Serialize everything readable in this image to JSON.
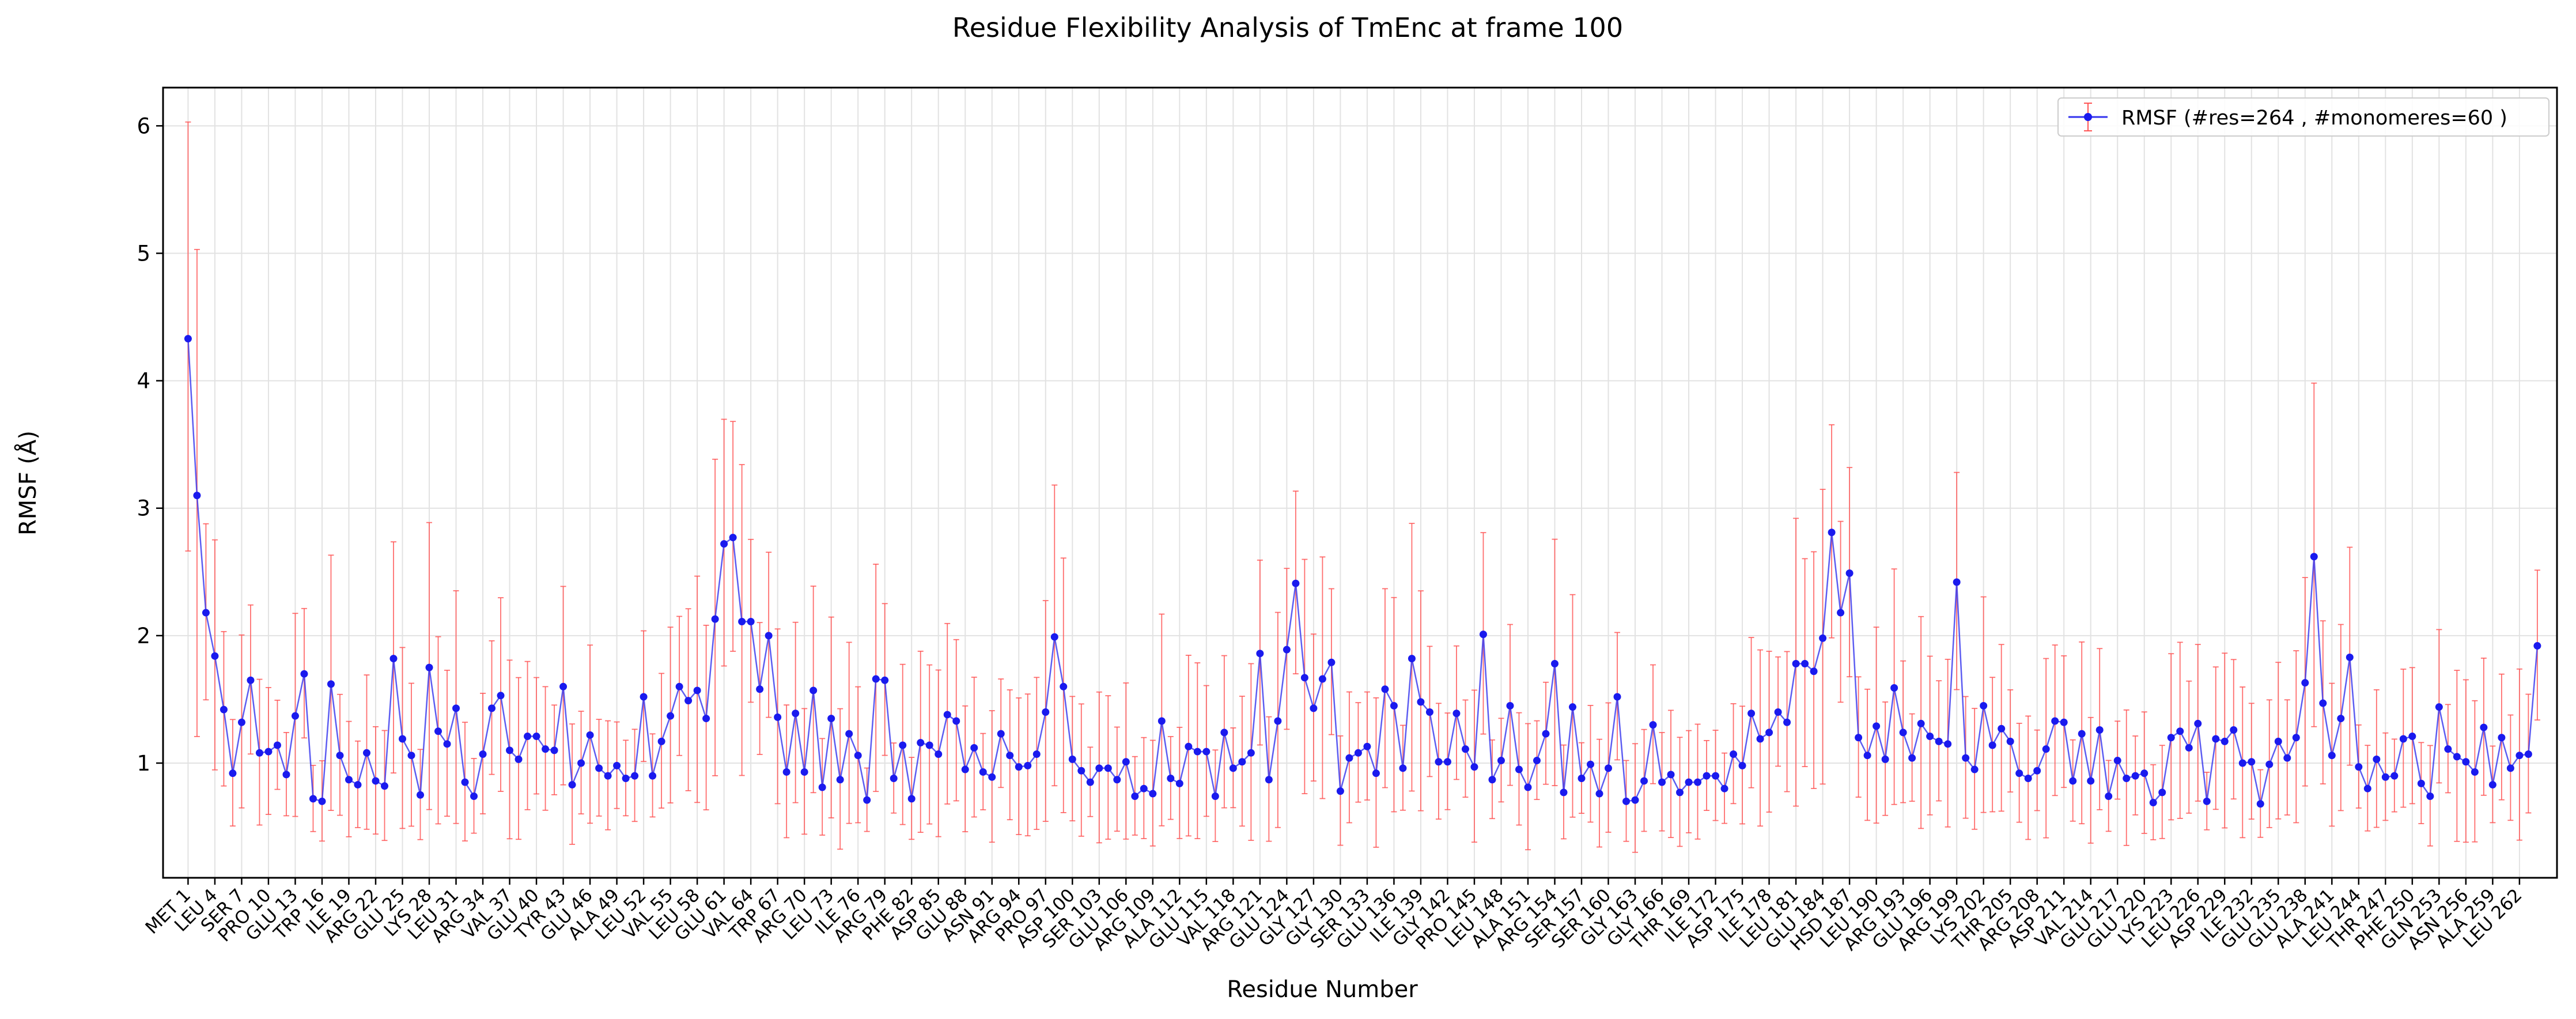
{
  "chart_data": {
    "type": "line",
    "title": "Residue Flexibility Analysis of TmEnc at frame 100",
    "xlabel": "Residue Number",
    "ylabel": "RMSF (Å)",
    "ylim": [
      0.1,
      6.3
    ],
    "yticks": [
      1,
      2,
      3,
      4,
      5,
      6
    ],
    "grid": true,
    "legend_position": "top-right",
    "colors": {
      "line": "#3333ee",
      "marker": "#1a1aee",
      "errorbar": "#ff5555"
    },
    "series": [
      {
        "name": "RMSF (#res=264 , #monomeres=60 )",
        "x": [
          1,
          2,
          3,
          4,
          5,
          6,
          7,
          8,
          9,
          10,
          11,
          12,
          13,
          14,
          15,
          16,
          17,
          18,
          19,
          20,
          21,
          22,
          23,
          24,
          25,
          26,
          27,
          28,
          29,
          30,
          31,
          32,
          33,
          34,
          35,
          36,
          37,
          38,
          39,
          40,
          41,
          42,
          43,
          44,
          45,
          46,
          47,
          48,
          49,
          50,
          51,
          52,
          53,
          54,
          55,
          56,
          57,
          58,
          59,
          60,
          61,
          62,
          63,
          64,
          65,
          66,
          67,
          68,
          69,
          70,
          71,
          72,
          73,
          74,
          75,
          76,
          77,
          78,
          79,
          80,
          81,
          82,
          83,
          84,
          85,
          86,
          87,
          88,
          89,
          90,
          91,
          92,
          93,
          94,
          95,
          96,
          97,
          98,
          99,
          100,
          101,
          102,
          103,
          104,
          105,
          106,
          107,
          108,
          109,
          110,
          111,
          112,
          113,
          114,
          115,
          116,
          117,
          118,
          119,
          120,
          121,
          122,
          123,
          124,
          125,
          126,
          127,
          128,
          129,
          130,
          131,
          132,
          133,
          134,
          135,
          136,
          137,
          138,
          139,
          140,
          141,
          142,
          143,
          144,
          145,
          146,
          147,
          148,
          149,
          150,
          151,
          152,
          153,
          154,
          155,
          156,
          157,
          158,
          159,
          160,
          161,
          162,
          163,
          164,
          165,
          166,
          167,
          168,
          169,
          170,
          171,
          172,
          173,
          174,
          175,
          176,
          177,
          178,
          179,
          180,
          181,
          182,
          183,
          184,
          185,
          186,
          187,
          188,
          189,
          190,
          191,
          192,
          193,
          194,
          195,
          196,
          197,
          198,
          199,
          200,
          201,
          202,
          203,
          204,
          205,
          206,
          207,
          208,
          209,
          210,
          211,
          212,
          213,
          214,
          215,
          216,
          217,
          218,
          219,
          220,
          221,
          222,
          223,
          224,
          225,
          226,
          227,
          228,
          229,
          230,
          231,
          232,
          233,
          234,
          235,
          236,
          237,
          238,
          239,
          240,
          241,
          242,
          243,
          244,
          245,
          246,
          247,
          248,
          249,
          250,
          251,
          252,
          253,
          254,
          255,
          256,
          257,
          258,
          259,
          260,
          261,
          262,
          263,
          264
        ],
        "y": [
          4.33,
          3.1,
          2.18,
          1.84,
          1.42,
          0.92,
          1.32,
          1.65,
          1.08,
          1.09,
          1.14,
          0.91,
          1.37,
          1.7,
          0.72,
          0.7,
          1.62,
          1.06,
          0.87,
          0.83,
          1.08,
          0.86,
          0.82,
          1.82,
          1.19,
          1.06,
          0.75,
          1.75,
          1.25,
          1.15,
          1.43,
          0.85,
          0.74,
          1.07,
          1.43,
          1.53,
          1.1,
          1.03,
          1.21,
          1.21,
          1.11,
          1.1,
          1.6,
          0.83,
          1.0,
          1.22,
          0.96,
          0.9,
          0.98,
          0.88,
          0.9,
          1.52,
          0.9,
          1.17,
          1.37,
          1.6,
          1.49,
          1.57,
          1.35,
          2.13,
          2.72,
          2.77,
          2.11,
          2.11,
          1.58,
          2.0,
          1.36,
          0.93,
          1.39,
          0.93,
          1.57,
          0.81,
          1.35,
          0.87,
          1.23,
          1.06,
          0.71,
          1.66,
          1.65,
          0.88,
          1.14,
          0.72,
          1.16,
          1.14,
          1.07,
          1.38,
          1.33,
          0.95,
          1.12,
          0.93,
          0.89,
          1.23,
          1.06,
          0.97,
          0.98,
          1.07,
          1.4,
          1.99,
          1.6,
          1.03,
          0.94,
          0.85,
          0.96,
          0.96,
          0.87,
          1.01,
          0.74,
          0.8,
          0.76,
          1.33,
          0.88,
          0.84,
          1.13,
          1.09,
          1.09,
          0.74,
          1.24,
          0.96,
          1.01,
          1.08,
          1.86,
          0.87,
          1.33,
          1.89,
          2.41,
          1.67,
          1.43,
          1.66,
          1.79,
          0.78,
          1.04,
          1.08,
          1.13,
          0.92,
          1.58,
          1.45,
          0.96,
          1.82,
          1.48,
          1.4,
          1.01,
          1.01,
          1.39,
          1.11,
          0.97,
          2.01,
          0.87,
          1.02,
          1.45,
          0.95,
          0.81,
          1.02,
          1.23,
          1.78,
          0.77,
          1.44,
          0.88,
          0.99,
          0.76,
          0.96,
          1.52,
          0.7,
          0.71,
          0.86,
          1.3,
          0.85,
          0.91,
          0.77,
          0.85,
          0.85,
          0.9,
          0.9,
          0.8,
          1.07,
          0.98,
          1.39,
          1.19,
          1.24,
          1.4,
          1.32,
          1.78,
          1.78,
          1.72,
          1.98,
          2.81,
          2.18,
          2.49,
          1.2,
          1.06,
          1.29,
          1.03,
          1.59,
          1.24,
          1.04,
          1.31,
          1.21,
          1.17,
          1.15,
          2.42,
          1.04,
          0.95,
          1.45,
          1.14,
          1.27,
          1.17,
          0.92,
          0.88,
          0.94,
          1.11,
          1.33,
          1.32,
          0.86,
          1.23,
          0.86,
          1.26,
          0.74,
          1.02,
          0.88,
          0.9,
          0.92,
          0.69,
          0.77,
          1.2,
          1.25,
          1.12,
          1.31,
          0.7,
          1.19,
          1.17,
          1.26,
          1.0,
          1.01,
          0.68,
          0.99,
          1.17,
          1.04,
          1.2,
          1.63,
          2.62,
          1.47,
          1.06,
          1.35,
          1.83,
          0.97,
          0.8,
          1.03,
          0.89,
          0.9,
          1.19,
          1.21,
          0.84,
          0.74,
          1.44,
          1.11,
          1.05,
          1.01,
          0.93,
          1.28,
          0.83,
          1.2,
          0.96,
          1.06,
          1.07,
          1.92
        ]
      }
    ],
    "xtick_labels": [
      "MET 1",
      "LEU 4",
      "SER 7",
      "PRO 10",
      "GLU 13",
      "TRP 16",
      "ILE 19",
      "ARG 22",
      "GLU 25",
      "LYS 28",
      "LEU 31",
      "ARG 34",
      "VAL 37",
      "GLU 40",
      "TYR 43",
      "GLU 46",
      "ALA 49",
      "LEU 52",
      "VAL 55",
      "LEU 58",
      "GLU 61",
      "VAL 64",
      "TRP 67",
      "ARG 70",
      "LEU 73",
      "ILE 76",
      "ARG 79",
      "PHE 82",
      "ASP 85",
      "GLU 88",
      "ASN 91",
      "ARG 94",
      "PRO 97",
      "ASP 100",
      "SER 103",
      "GLU 106",
      "ARG 109",
      "ALA 112",
      "GLU 115",
      "VAL 118",
      "ARG 121",
      "GLU 124",
      "GLY 127",
      "GLY 130",
      "SER 133",
      "GLU 136",
      "ILE 139",
      "GLY 142",
      "PRO 145",
      "LEU 148",
      "ALA 151",
      "ARG 154",
      "SER 157",
      "SER 160",
      "GLY 163",
      "GLY 166",
      "THR 169",
      "ILE 172",
      "ASP 175",
      "ILE 178",
      "LEU 181",
      "GLU 184",
      "HSD 187",
      "LEU 190",
      "ARG 193",
      "GLU 196",
      "ARG 199",
      "LYS 202",
      "THR 205",
      "ARG 208",
      "ASP 211",
      "VAL 214",
      "GLU 217",
      "GLU 220",
      "LYS 223",
      "LEU 226",
      "ASP 229",
      "ILE 232",
      "GLU 235",
      "GLU 238",
      "ALA 241",
      "LEU 244",
      "THR 247",
      "PHE 250",
      "GLN 253",
      "ASN 256",
      "ALA 259",
      "LEU 262"
    ]
  }
}
